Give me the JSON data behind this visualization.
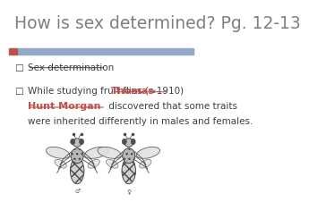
{
  "title": "How is sex determined? Pg. 12-13",
  "title_color": "#7f7f7f",
  "title_fontsize": 13.5,
  "accent_bar_color": "#c0504d",
  "accent_bar2_color": "#92a9c8",
  "background_color": "#ffffff",
  "bullet1": "Sex determination",
  "bullet2_pre": "While studying fruit flies (≈1910) ",
  "bullet2_name1": "Thomas",
  "bullet2_name2": "Hunt Morgan",
  "bullet2_name_color": "#c0504d",
  "bullet2_post1": " discovered that some traits",
  "bullet2_post2": "were inherited differently in males and females.",
  "bullet_fontsize": 7.5,
  "bullet_color": "#3f3f3f",
  "fly_symbol_male": "♂",
  "fly_symbol_female": "♀",
  "underline_color": "#3f3f3f",
  "name_underline_color": "#c0504d"
}
